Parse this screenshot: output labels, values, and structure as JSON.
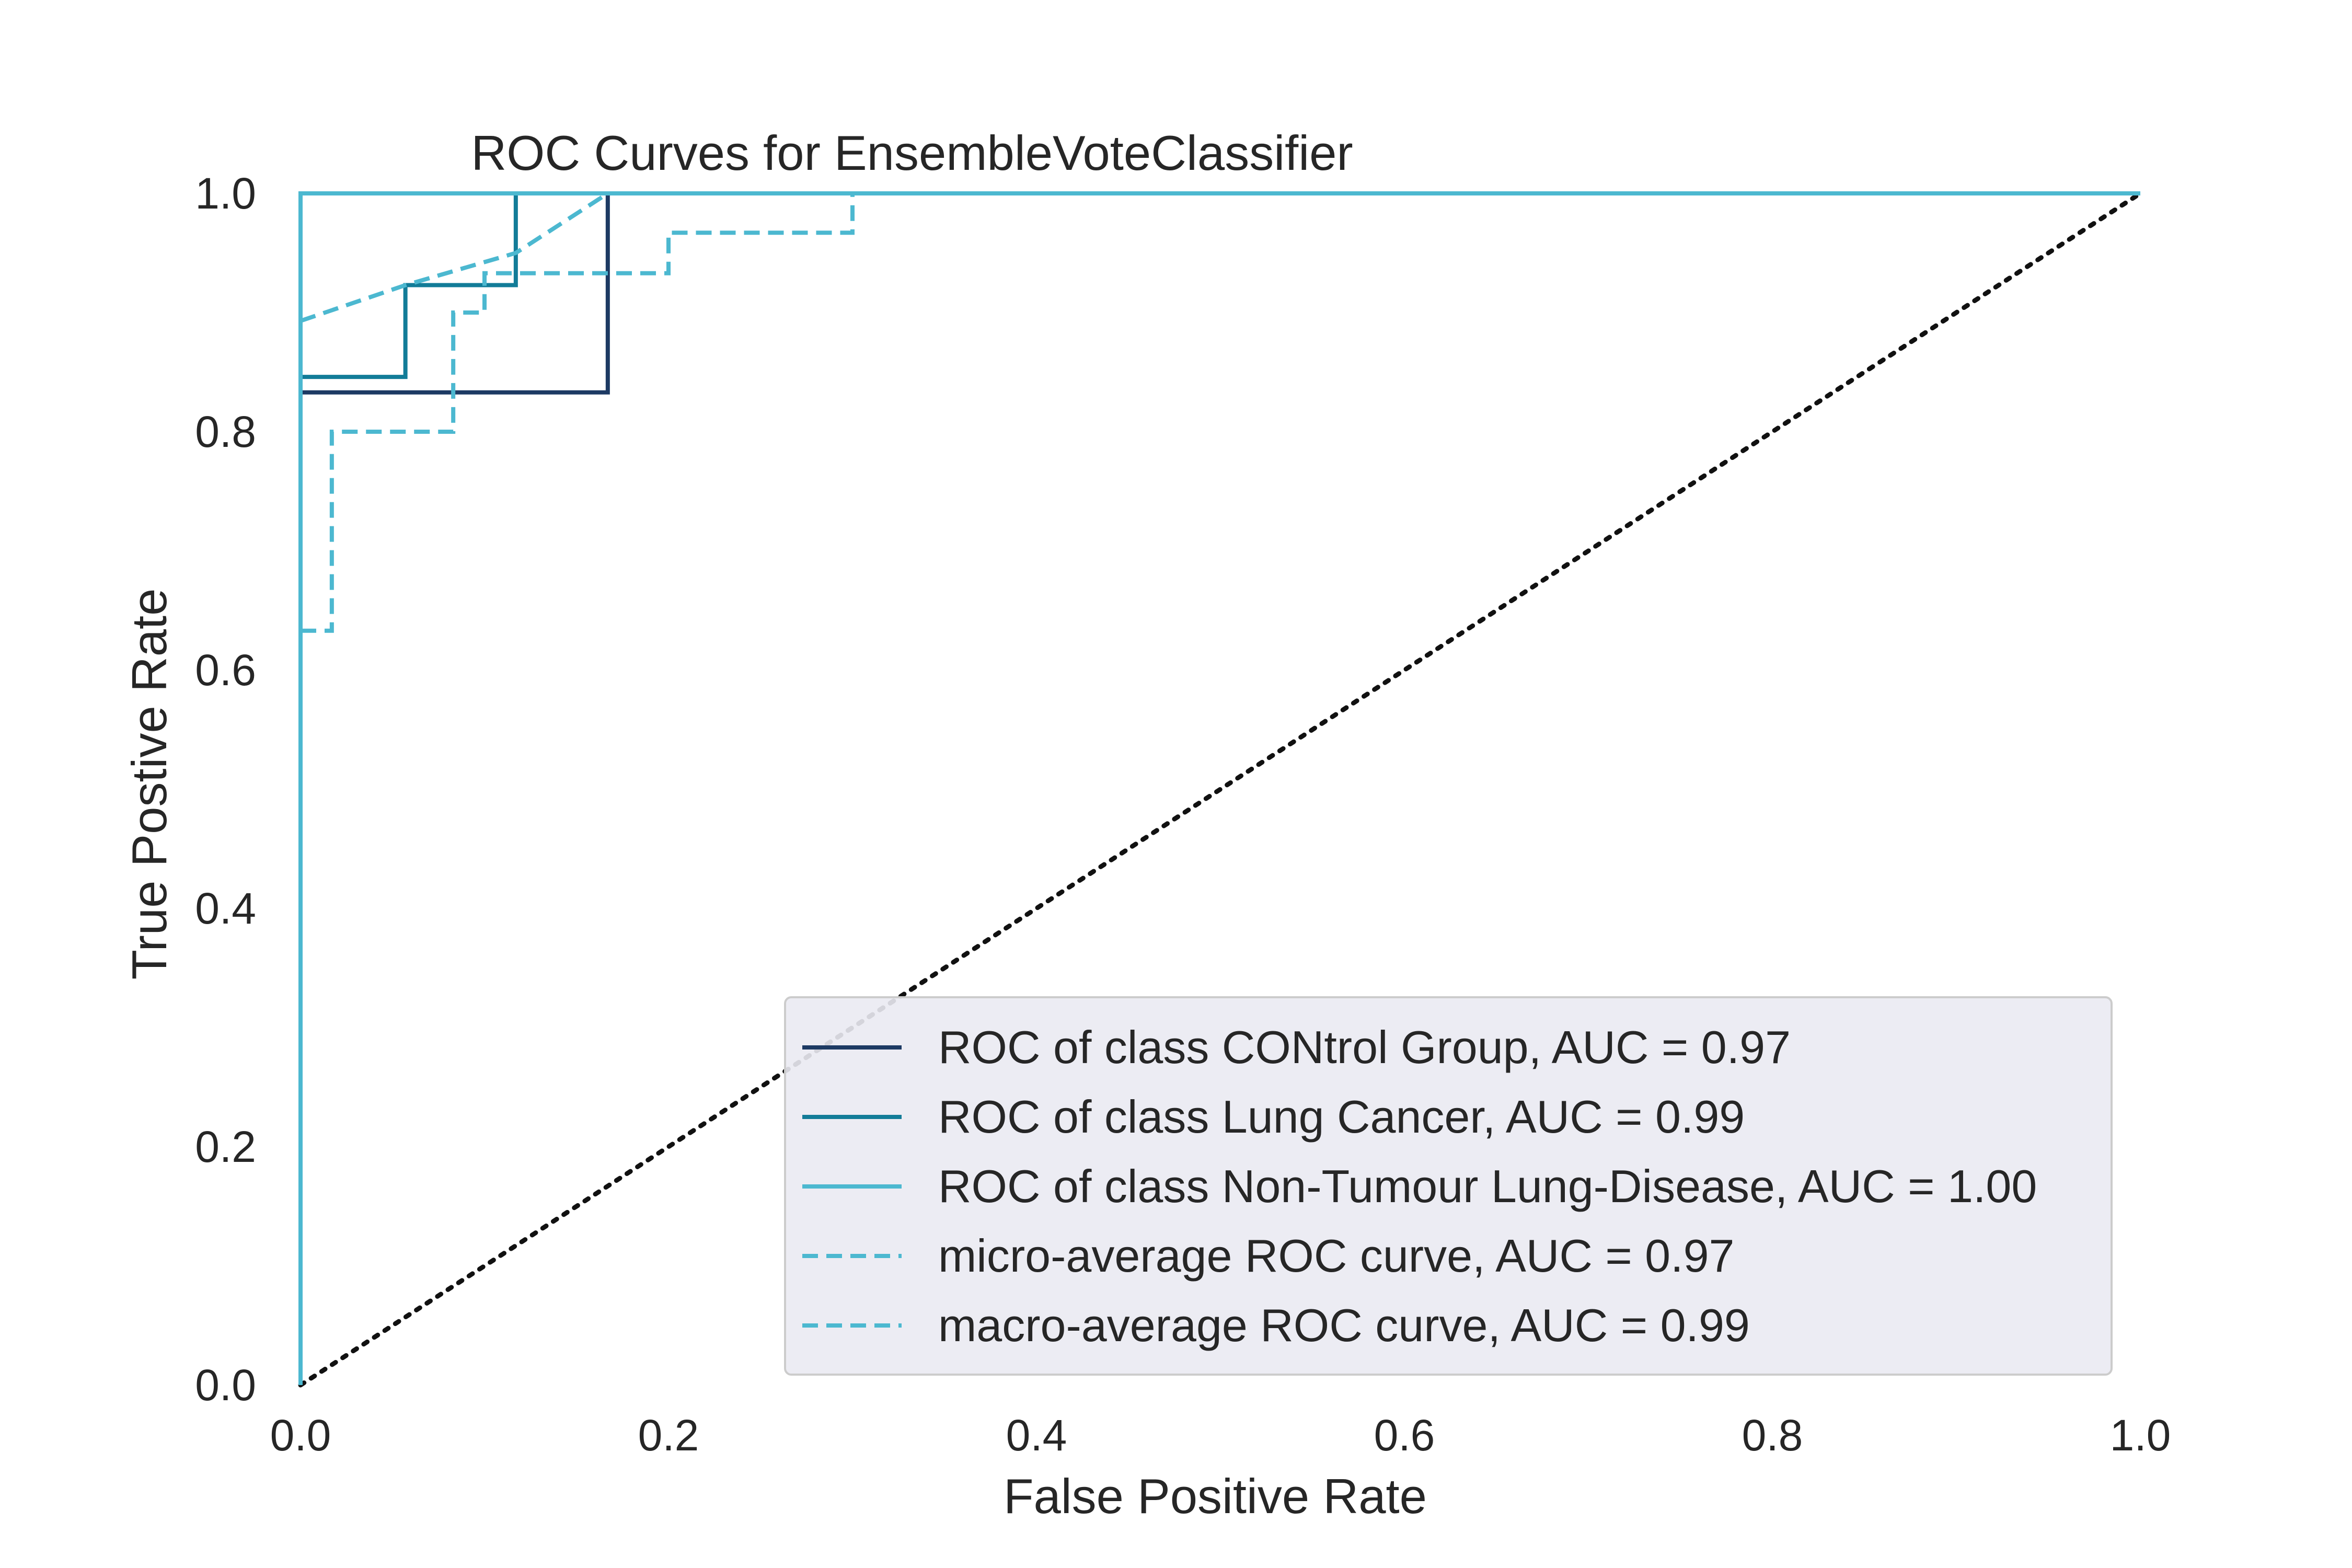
{
  "chart_data": {
    "type": "line",
    "title": "ROC Curves for EnsembleVoteClassifier",
    "xlabel": "False Positive Rate",
    "ylabel": "True Postive Rate",
    "xlim": [
      0,
      1
    ],
    "ylim": [
      0,
      1
    ],
    "xticks": [
      "0.0",
      "0.2",
      "0.4",
      "0.6",
      "0.8",
      "1.0"
    ],
    "yticks": [
      "0.0",
      "0.2",
      "0.4",
      "0.6",
      "0.8",
      "1.0"
    ],
    "grid": false,
    "legend_position": "lower-right",
    "series": [
      {
        "name": "ROC of class CONtrol Group, AUC = 0.97",
        "color": "#1d3a63",
        "dash": "solid",
        "x": [
          0,
          0,
          0.167,
          0.167,
          1
        ],
        "y": [
          0,
          0.833,
          0.833,
          1.0,
          1.0
        ]
      },
      {
        "name": "ROC of class Lung Cancer, AUC = 0.99",
        "color": "#127c98",
        "dash": "solid",
        "x": [
          0,
          0,
          0.057,
          0.057,
          0.117,
          0.117,
          1
        ],
        "y": [
          0,
          0.846,
          0.846,
          0.923,
          0.923,
          1.0,
          1.0
        ]
      },
      {
        "name": "ROC of class Non-Tumour Lung-Disease, AUC = 1.00",
        "color": "#4cb8d0",
        "dash": "solid",
        "x": [
          0,
          0,
          1
        ],
        "y": [
          0,
          1.0,
          1.0
        ]
      },
      {
        "name": "micro-average ROC curve, AUC = 0.97",
        "color": "#4cb8d0",
        "dash": "dashed",
        "x": [
          0,
          0.017,
          0.017,
          0.083,
          0.083,
          0.1,
          0.1,
          0.2,
          0.2,
          0.3,
          0.3,
          1
        ],
        "y": [
          0.633,
          0.633,
          0.8,
          0.8,
          0.9,
          0.9,
          0.933,
          0.933,
          0.967,
          0.967,
          1.0,
          1.0
        ]
      },
      {
        "name": "macro-average ROC curve, AUC = 0.99",
        "color": "#4cb8d0",
        "dash": "dashed",
        "x": [
          0,
          0.057,
          0.117,
          0.167,
          1
        ],
        "y": [
          0.893,
          0.923,
          0.95,
          1.0,
          1.0
        ]
      }
    ],
    "diagonal": {
      "color": "#111111",
      "dash": "dotted",
      "x": [
        0,
        1
      ],
      "y": [
        0,
        1
      ]
    }
  }
}
